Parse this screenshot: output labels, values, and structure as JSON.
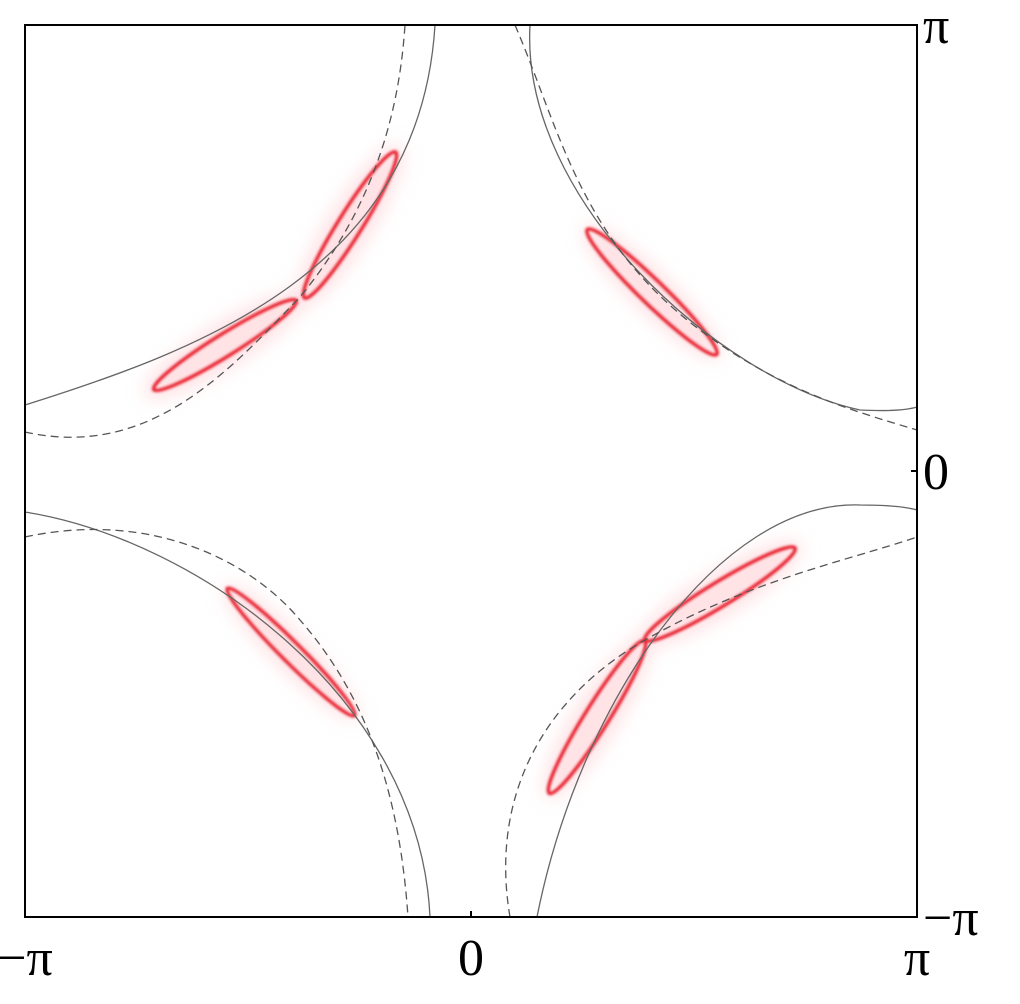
{
  "chart_data": {
    "type": "density",
    "xlim": [
      -3.14159,
      3.14159
    ],
    "ylim": [
      -3.14159,
      3.14159
    ],
    "xticks": [
      {
        "value": -3.14159,
        "label": "−π"
      },
      0,
      {
        "value": 3.14159,
        "label": "π"
      }
    ],
    "yticks": [
      {
        "value": -3.14159,
        "label": "−π"
      },
      0,
      {
        "value": 3.14159,
        "label": "π"
      }
    ]
  }
}
